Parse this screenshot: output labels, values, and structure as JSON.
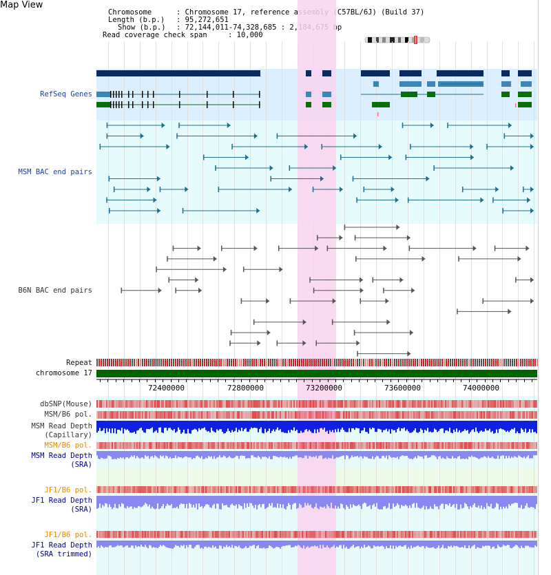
{
  "page_title": "Map View",
  "header": {
    "chromosome_label": "Chromosome",
    "chromosome_value": ": Chromosome 17, reference assembly (C57BL/6J) (Build 37)",
    "length_label": "Length (b.p.)",
    "length_value": ": 95,272,651",
    "show_label": "Show (b.p.)",
    "show_value": ": 72,144,011-74,328,685 : 2,184,675 bp",
    "coverage_label": "Read coverage check span",
    "coverage_value": ": 10,000"
  },
  "tracks": {
    "refseq": "RefSeq Genes",
    "msm_bac": "MSM BAC end pairs",
    "b6n_bac": "B6N BAC end pairs",
    "repeat": "Repeat",
    "chromosome": "chromosome 17",
    "dbsnp": "dbSNP(Mouse)",
    "msm_b6_pol_1": "MSM/B6 pol.",
    "msm_depth_cap_1": "MSM Read Depth",
    "msm_depth_cap_2": "(Capillary)",
    "msm_b6_pol_2": "MSM/B6 pol.",
    "msm_depth_sra_1": "MSM Read Depth",
    "msm_depth_sra_2": "(SRA)",
    "jf1_b6_pol_1": "JF1/B6 pol.",
    "jf1_depth_sra_1": "JF1 Read Depth",
    "jf1_depth_sra_2": "(SRA)",
    "jf1_b6_pol_2": "JF1/B6 pol.",
    "jf1_depth_trim_1": "JF1 Read Depth",
    "jf1_depth_trim_2": "(SRA trimmed)"
  },
  "axis": {
    "tick_labels": [
      "72400000",
      "72800000",
      "73200000",
      "73600000",
      "74000000"
    ]
  },
  "colors": {
    "refseq_bg": "#dcefff",
    "msm_bg": "#e6fbfb",
    "highlight": "#f9d4ef",
    "gene_dark": "#0b2a5e",
    "gene_mid": "#3a86b8",
    "gene_green": "#0a6e0a",
    "msm_line": "#1d6e8a",
    "b6n_line": "#555555",
    "chrom_bar": "#006400",
    "snp": "#e04848",
    "depth_dark": "#1020e0",
    "depth_light": "#8888f0"
  }
}
